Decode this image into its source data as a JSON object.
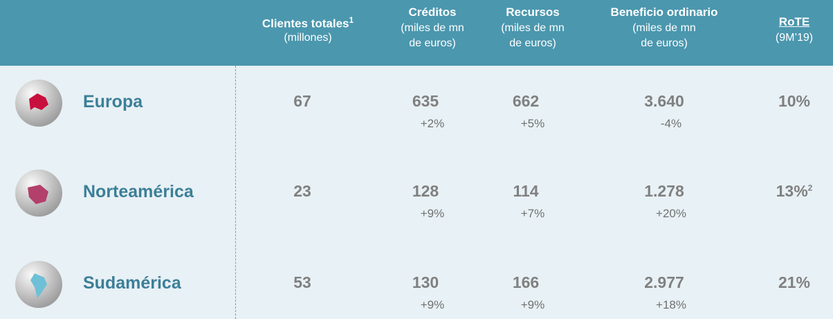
{
  "header": {
    "columns": [
      {
        "title": "Clientes totales",
        "sup": "1",
        "sub": [
          "(millones)"
        ]
      },
      {
        "title": "Créditos",
        "sub": [
          "(miles de mn",
          "de euros)"
        ]
      },
      {
        "title": "Recursos",
        "sub": [
          "(miles de mn",
          "de euros)"
        ]
      },
      {
        "title": "Beneficio ordinario",
        "sub": [
          "(miles de mn",
          "de euros)"
        ]
      },
      {
        "title": "RoTE",
        "sub": [
          "(9M’19)"
        ]
      }
    ]
  },
  "rows": [
    {
      "region": "Europa",
      "clientes": "67",
      "creditos": {
        "value": "635",
        "change": "+2%"
      },
      "recursos": {
        "value": "662",
        "change": "+5%"
      },
      "beneficio": {
        "value": "3.640",
        "change": "-4%"
      },
      "rote": "10%"
    },
    {
      "region": "Norteamérica",
      "clientes": "23",
      "creditos": {
        "value": "128",
        "change": "+9%"
      },
      "recursos": {
        "value": "114",
        "change": "+7%"
      },
      "beneficio": {
        "value": "1.278",
        "change": "+20%"
      },
      "rote": "13%",
      "rote_sup": "2"
    },
    {
      "region": "Sudamérica",
      "clientes": "53",
      "creditos": {
        "value": "130",
        "change": "+9%"
      },
      "recursos": {
        "value": "166",
        "change": "+9%"
      },
      "beneficio": {
        "value": "2.977",
        "change": "+18%"
      },
      "rote": "21%"
    }
  ]
}
